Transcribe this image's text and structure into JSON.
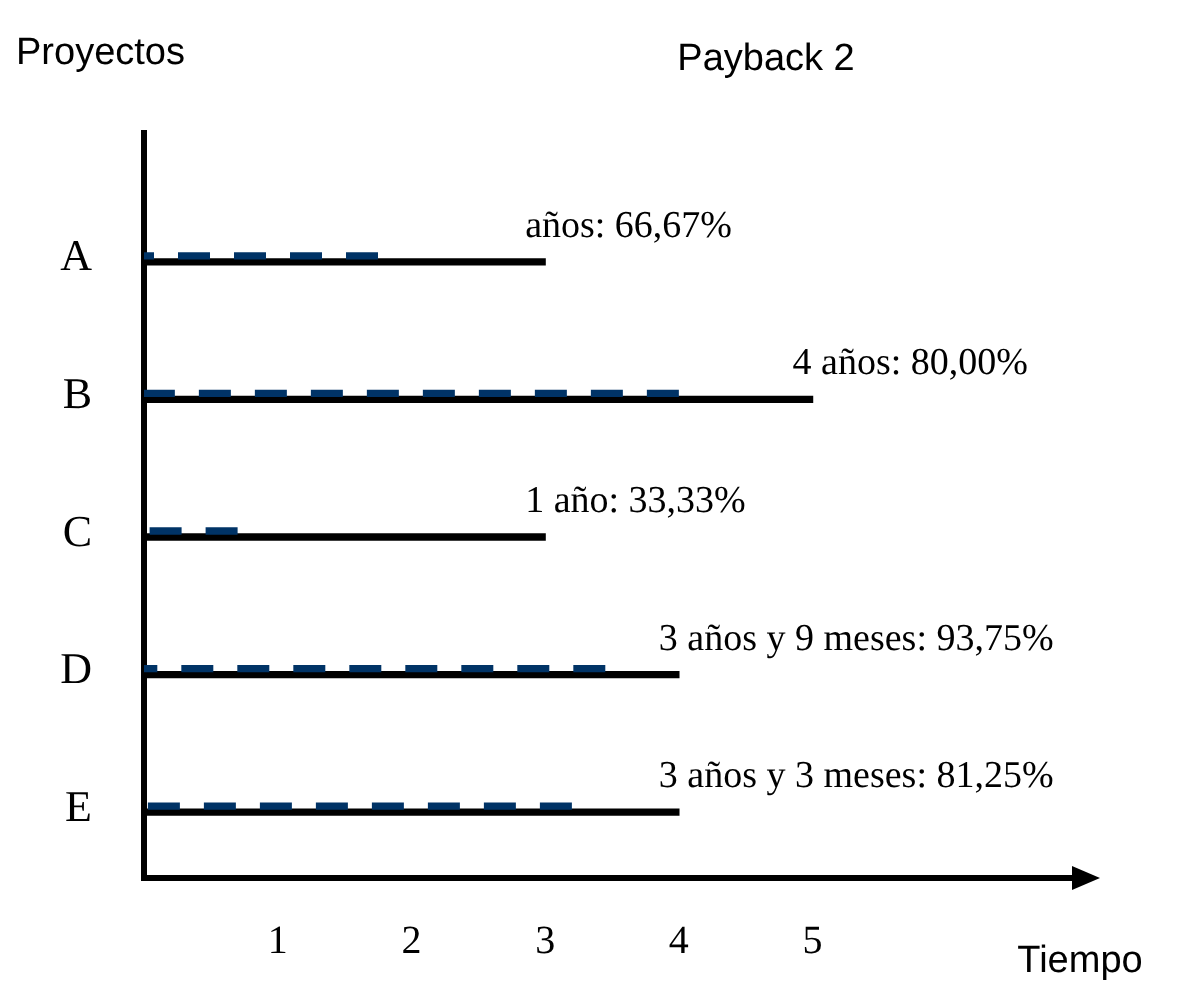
{
  "chart_data": {
    "type": "bar",
    "orientation": "horizontal",
    "title": "Payback 2",
    "ylabel": "Proyectos",
    "xlabel": "Tiempo",
    "categories": [
      "A",
      "B",
      "C",
      "D",
      "E"
    ],
    "series": [
      {
        "color": "#003366",
        "line_style": "dashed",
        "values": [
          1.75,
          4,
          0.7,
          3.45,
          3.2
        ]
      },
      {
        "color": "#000000",
        "line_style": "solid",
        "values": [
          3,
          5,
          3,
          4,
          4
        ]
      }
    ],
    "xlim": [
      0,
      7
    ],
    "xticks": [
      1,
      2,
      3,
      4,
      5
    ],
    "grid": false,
    "legend": false,
    "annotations": [
      "años: 66,67%",
      "4 años: 80,00%",
      "1 año: 33,33%",
      "3 años y 9 meses: 93,75%",
      "3 años y 3 meses: 81,25%"
    ]
  }
}
